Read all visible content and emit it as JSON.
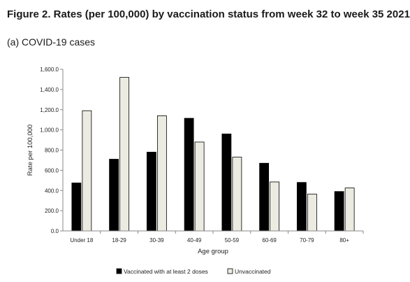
{
  "figure_title": "Figure 2. Rates (per 100,000) by vaccination status from week 32 to week 35 2021",
  "panel_title": "(a) COVID-19 cases",
  "colors": {
    "vaccinated": "#000000",
    "unvaccinated": "#ecebe1",
    "axis": "#888888"
  },
  "chart_data": {
    "type": "bar",
    "categories": [
      "Under 18",
      "18-29",
      "30-39",
      "40-49",
      "50-59",
      "60-69",
      "70-79",
      "80+"
    ],
    "series": [
      {
        "name": "Vaccinated with at least 2 doses",
        "values": [
          475,
          710,
          780,
          1115,
          960,
          670,
          480,
          390
        ]
      },
      {
        "name": "Unvaccinated",
        "values": [
          1190,
          1520,
          1140,
          880,
          730,
          485,
          365,
          425
        ]
      }
    ],
    "ylim": [
      0,
      1600
    ],
    "yticks": [
      0,
      200,
      400,
      600,
      800,
      1000,
      1200,
      1400,
      1600
    ],
    "ytick_labels": [
      "0.0",
      "200.0",
      "400.0",
      "600.0",
      "800.0",
      "1,000.0",
      "1,200.0",
      "1,400.0",
      "1,600.0"
    ],
    "xlabel": "Age group",
    "ylabel": "Rate per 100,000",
    "grid": false,
    "legend_position": "bottom"
  }
}
